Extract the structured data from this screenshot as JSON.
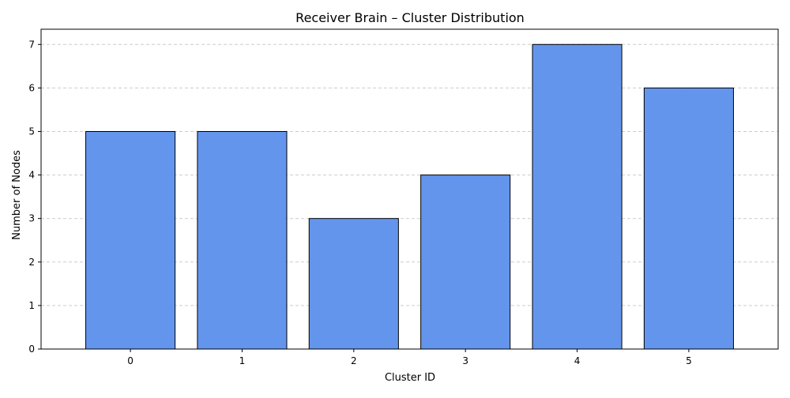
{
  "chart_data": {
    "type": "bar",
    "title": "Receiver Brain – Cluster Distribution",
    "xlabel": "Cluster ID",
    "ylabel": "Number of Nodes",
    "categories": [
      "0",
      "1",
      "2",
      "3",
      "4",
      "5"
    ],
    "values": [
      5,
      5,
      3,
      4,
      7,
      6
    ],
    "ylim": [
      0,
      7.35
    ],
    "yticks": [
      "0",
      "1",
      "2",
      "3",
      "4",
      "5",
      "6",
      "7"
    ],
    "grid": "y, dashed",
    "colors": {
      "bar_fill": "#6495ED",
      "bar_edge": "#000000",
      "grid": "#cccccc",
      "axis": "#000000"
    }
  }
}
